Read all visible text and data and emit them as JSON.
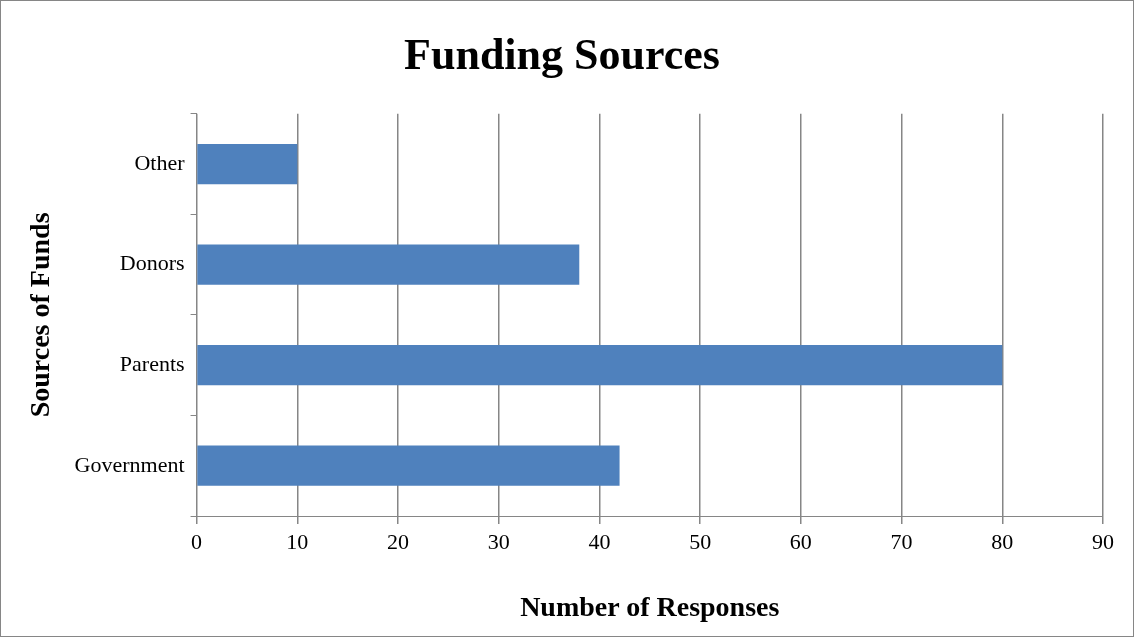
{
  "chart_data": {
    "type": "bar",
    "orientation": "horizontal",
    "title": "Funding Sources",
    "xlabel": "Number of Responses",
    "ylabel": "Sources of Funds",
    "categories": [
      "Other",
      "Donors",
      "Parents",
      "Government"
    ],
    "values": [
      10,
      38,
      80,
      42
    ],
    "color": "#4f81bd",
    "xlim": [
      0,
      90
    ],
    "xticks": [
      0,
      10,
      20,
      30,
      40,
      50,
      60,
      70,
      80,
      90
    ],
    "grid": "x",
    "legend": false
  }
}
